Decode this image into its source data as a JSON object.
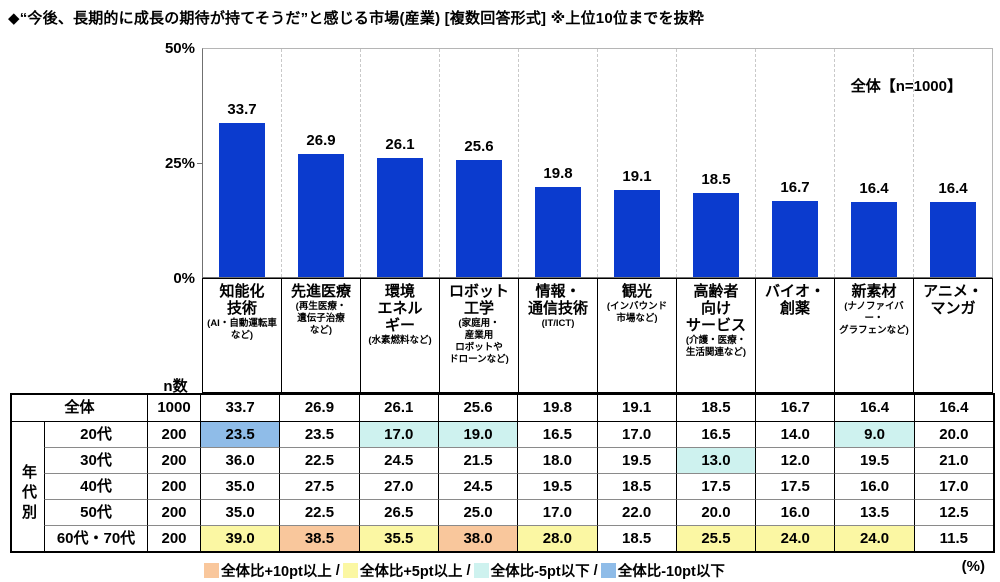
{
  "title": "◆“今後、長期的に成長の期待が持てそうだ”と感じる市場(産業) [複数回答形式] ※上位10位までを抜粋",
  "chart_data": {
    "type": "bar",
    "title": "“今後、長期的に成長の期待が持てそうだ”と感じる市場(産業) 上位10位",
    "legend": "全体【n=1000】",
    "bar_color": "#0b3bce",
    "ylim": [
      0,
      50
    ],
    "yticks": [
      "50%",
      "25%",
      "0%"
    ],
    "grid": "vertical-dashed",
    "legend_position": "top-right",
    "categories": [
      "知能化技術",
      "先進医療",
      "環境エネルギー",
      "ロボット工学",
      "情報・通信技術",
      "観光",
      "高齢者向けサービス",
      "バイオ・創薬",
      "新素材",
      "アニメ・マンガ"
    ],
    "values": [
      33.7,
      26.9,
      26.1,
      25.6,
      19.8,
      19.1,
      18.5,
      16.7,
      16.4,
      16.4
    ],
    "value_labels": [
      "33.7",
      "26.9",
      "26.1",
      "25.6",
      "19.8",
      "19.1",
      "18.5",
      "16.7",
      "16.4",
      "16.4"
    ],
    "category_display": [
      {
        "main": "知能化\n技術",
        "sub": "(AI・自動運転車\nなど)"
      },
      {
        "main": "先進医療",
        "sub": "(再生医療・\n遺伝子治療\nなど)"
      },
      {
        "main": "環境\nエネル\nギー",
        "sub": "(水素燃料など)"
      },
      {
        "main": "ロボット\n工学",
        "sub": "(家庭用・\n産業用\nロボットや\nドローンなど)"
      },
      {
        "main": "情報・\n通信技術",
        "sub": "(IT/ICT)"
      },
      {
        "main": "観光",
        "sub": "(インバウンド\n市場など)"
      },
      {
        "main": "高齢者\n向け\nサービス",
        "sub": "(介護・医療・\n生活関連など)"
      },
      {
        "main": "バイオ・\n創薬",
        "sub": ""
      },
      {
        "main": "新素材",
        "sub": "(ナノファイバー・\nグラフェンなど)"
      },
      {
        "main": "アニメ・\nマンガ",
        "sub": ""
      }
    ]
  },
  "table": {
    "n_header": "n数",
    "group_label": "年代別",
    "rows": [
      {
        "label": "全体",
        "n": "1000",
        "values": [
          "33.7",
          "26.9",
          "26.1",
          "25.6",
          "19.8",
          "19.1",
          "18.5",
          "16.7",
          "16.4",
          "16.4"
        ],
        "flags": [
          "",
          "",
          "",
          "",
          "",
          "",
          "",
          "",
          "",
          ""
        ]
      },
      {
        "label": "20代",
        "n": "200",
        "values": [
          "23.5",
          "23.5",
          "17.0",
          "19.0",
          "16.5",
          "17.0",
          "16.5",
          "14.0",
          "9.0",
          "20.0"
        ],
        "flags": [
          "minus10",
          "",
          "minus5",
          "minus5",
          "",
          "",
          "",
          "",
          "minus5",
          ""
        ]
      },
      {
        "label": "30代",
        "n": "200",
        "values": [
          "36.0",
          "22.5",
          "24.5",
          "21.5",
          "18.0",
          "19.5",
          "13.0",
          "12.0",
          "19.5",
          "21.0"
        ],
        "flags": [
          "",
          "",
          "",
          "",
          "",
          "",
          "minus5",
          "",
          "",
          ""
        ]
      },
      {
        "label": "40代",
        "n": "200",
        "values": [
          "35.0",
          "27.5",
          "27.0",
          "24.5",
          "19.5",
          "18.5",
          "17.5",
          "17.5",
          "16.0",
          "17.0"
        ],
        "flags": [
          "",
          "",
          "",
          "",
          "",
          "",
          "",
          "",
          "",
          ""
        ]
      },
      {
        "label": "50代",
        "n": "200",
        "values": [
          "35.0",
          "22.5",
          "26.5",
          "25.0",
          "17.0",
          "22.0",
          "20.0",
          "16.0",
          "13.5",
          "12.5"
        ],
        "flags": [
          "",
          "",
          "",
          "",
          "",
          "",
          "",
          "",
          "",
          ""
        ]
      },
      {
        "label": "60代・70代",
        "n": "200",
        "values": [
          "39.0",
          "38.5",
          "35.5",
          "38.0",
          "28.0",
          "18.5",
          "25.5",
          "24.0",
          "24.0",
          "11.5"
        ],
        "flags": [
          "plus5",
          "plus10",
          "plus5",
          "plus10",
          "plus5",
          "",
          "plus5",
          "plus5",
          "plus5",
          ""
        ]
      }
    ]
  },
  "highlight_colors": {
    "plus10": "#f9c79c",
    "plus5": "#fbf7a3",
    "minus5": "#cef2ef",
    "minus10": "#8fbce8"
  },
  "bottom_legend": {
    "items": [
      {
        "flag": "plus10",
        "label": "全体比+10pt以上"
      },
      {
        "flag": "plus5",
        "label": "全体比+5pt以上"
      },
      {
        "flag": "minus5",
        "label": "全体比-5pt以下"
      },
      {
        "flag": "minus10",
        "label": "全体比-10pt以下"
      }
    ],
    "separator": "/",
    "unit": "(%)"
  }
}
